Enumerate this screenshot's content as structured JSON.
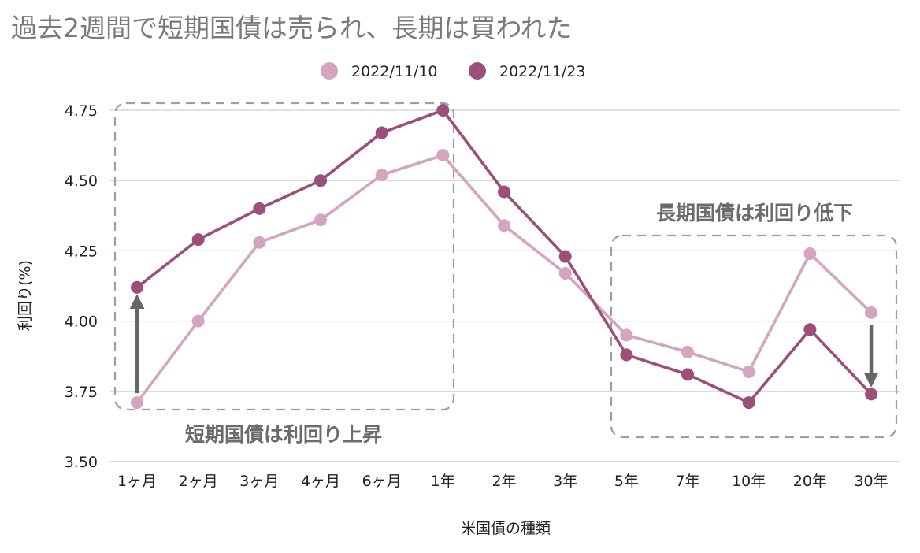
{
  "chart_data": {
    "type": "line",
    "title": "過去2週間で短期国債は売られ、長期は買われた",
    "xlabel": "米国債の種類",
    "ylabel": "利回り(%)",
    "ylim": [
      3.5,
      4.75
    ],
    "yticks": [
      "3.50",
      "3.75",
      "4.00",
      "4.25",
      "4.50",
      "4.75"
    ],
    "grid": true,
    "legend_position": "top-center",
    "categories": [
      "1ヶ月",
      "2ヶ月",
      "3ヶ月",
      "4ヶ月",
      "6ヶ月",
      "1年",
      "2年",
      "3年",
      "5年",
      "7年",
      "10年",
      "20年",
      "30年"
    ],
    "series": [
      {
        "name": "2022/11/10",
        "color": "#d4a5bf",
        "values": [
          3.71,
          4.0,
          4.28,
          4.36,
          4.52,
          4.59,
          4.34,
          4.17,
          3.95,
          3.89,
          3.82,
          4.24,
          4.03
        ]
      },
      {
        "name": "2022/11/23",
        "color": "#9c4f78",
        "values": [
          4.12,
          4.29,
          4.4,
          4.5,
          4.67,
          4.75,
          4.46,
          4.23,
          3.88,
          3.81,
          3.71,
          3.97,
          3.74
        ]
      }
    ],
    "annotations": [
      {
        "text": "短期国債は利回り上昇"
      },
      {
        "text": "長期国債は利回り低下"
      }
    ],
    "colors": {
      "title": "#7a7a7a",
      "annotation_text": "#6b6b6b",
      "arrow": "#666666",
      "grid": "#cfcfcf",
      "dashed_box": "#9e9e9e"
    }
  }
}
